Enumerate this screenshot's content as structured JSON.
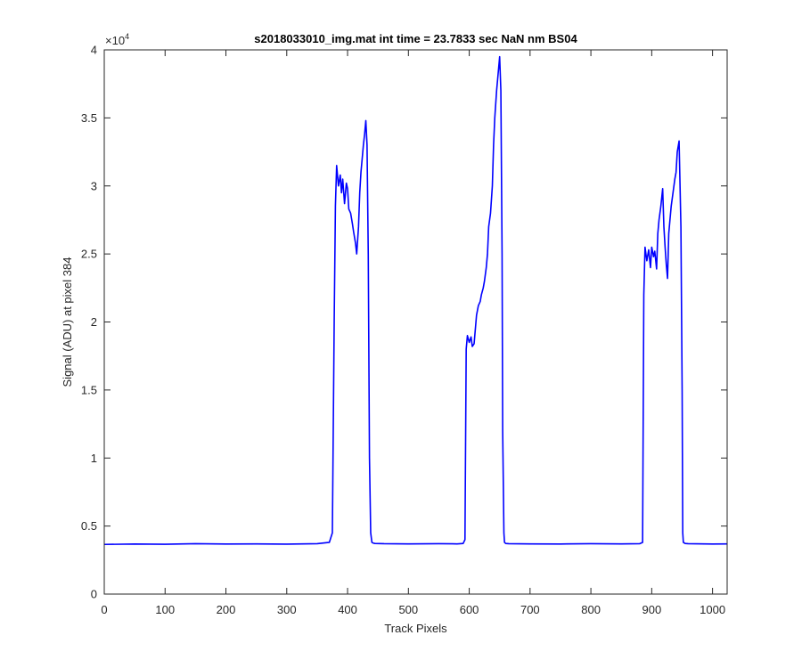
{
  "chart_data": {
    "type": "line",
    "title": "s2018033010_img.mat int time = 23.7833 sec  NaN nm BS04",
    "xlabel": "Track Pixels",
    "ylabel": "Signal (ADU) at pixel 384",
    "xlim": [
      0,
      1024
    ],
    "ylim": [
      0,
      40000
    ],
    "x_ticks": [
      0,
      100,
      200,
      300,
      400,
      500,
      600,
      700,
      800,
      900,
      1000
    ],
    "x_tick_labels": [
      "0",
      "100",
      "200",
      "300",
      "400",
      "500",
      "600",
      "700",
      "800",
      "900",
      "1000"
    ],
    "y_ticks": [
      0,
      5000,
      10000,
      15000,
      20000,
      25000,
      30000,
      35000,
      40000
    ],
    "y_tick_labels": [
      "0",
      "0.5",
      "1",
      "1.5",
      "2",
      "2.5",
      "3",
      "3.5",
      "4"
    ],
    "y_exponent_base": "×10",
    "y_exponent_power": "4",
    "grid": false,
    "line_color": "#0000ff",
    "series": [
      {
        "x": [
          0,
          50,
          100,
          150,
          200,
          250,
          300,
          350,
          370,
          375,
          378,
          380,
          382,
          385,
          388,
          390,
          392,
          395,
          398,
          400,
          402,
          405,
          408,
          410,
          413,
          415,
          418,
          420,
          422,
          424,
          426,
          428,
          430,
          432,
          434,
          436,
          438,
          440,
          442,
          445,
          460,
          500,
          550,
          580,
          590,
          593,
          595,
          597,
          600,
          603,
          605,
          608,
          612,
          615,
          618,
          620,
          623,
          625,
          628,
          630,
          632,
          635,
          638,
          640,
          642,
          645,
          648,
          650,
          652,
          654,
          655,
          657,
          658,
          660,
          665,
          700,
          750,
          800,
          850,
          880,
          885,
          887,
          889,
          892,
          895,
          898,
          900,
          903,
          905,
          908,
          910,
          912,
          915,
          918,
          920,
          922,
          924,
          926,
          928,
          930,
          932,
          935,
          938,
          940,
          942,
          945,
          948,
          950,
          951,
          952,
          955,
          960,
          1000,
          1024
        ],
        "values": [
          3650,
          3680,
          3660,
          3700,
          3680,
          3690,
          3670,
          3700,
          3800,
          4500,
          20000,
          28500,
          31500,
          30000,
          30800,
          29500,
          30500,
          28700,
          30200,
          29800,
          28300,
          28000,
          27200,
          26600,
          25800,
          25000,
          27000,
          29500,
          31000,
          32000,
          33000,
          33800,
          34800,
          33000,
          25000,
          10000,
          4500,
          3800,
          3750,
          3720,
          3700,
          3690,
          3700,
          3690,
          3720,
          4000,
          18000,
          19000,
          18500,
          18900,
          18200,
          18400,
          20500,
          21200,
          21500,
          22000,
          22500,
          23000,
          24000,
          25000,
          27000,
          28000,
          30000,
          33000,
          35000,
          37000,
          38500,
          39500,
          37000,
          25000,
          12000,
          4500,
          3800,
          3720,
          3700,
          3690,
          3680,
          3700,
          3690,
          3700,
          3800,
          22000,
          25500,
          24500,
          25300,
          24000,
          25500,
          24800,
          25200,
          23900,
          26500,
          27500,
          28500,
          29800,
          27000,
          25500,
          24200,
          23200,
          26500,
          27500,
          28500,
          29500,
          30500,
          31000,
          32500,
          33300,
          27000,
          15000,
          4500,
          3800,
          3720,
          3700,
          3680,
          3690
        ]
      }
    ]
  }
}
